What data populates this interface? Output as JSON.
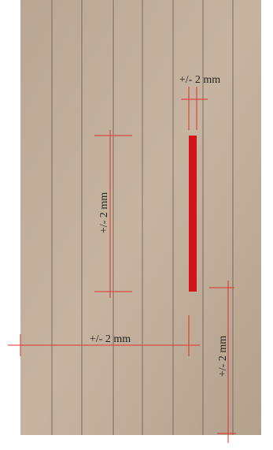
{
  "annotations": [
    {
      "text": "+/- 2 mm"
    },
    {
      "text": "+/- 2 mm"
    },
    {
      "text": "+/- 2 mm"
    },
    {
      "text": "+/- 2 mm"
    }
  ]
}
